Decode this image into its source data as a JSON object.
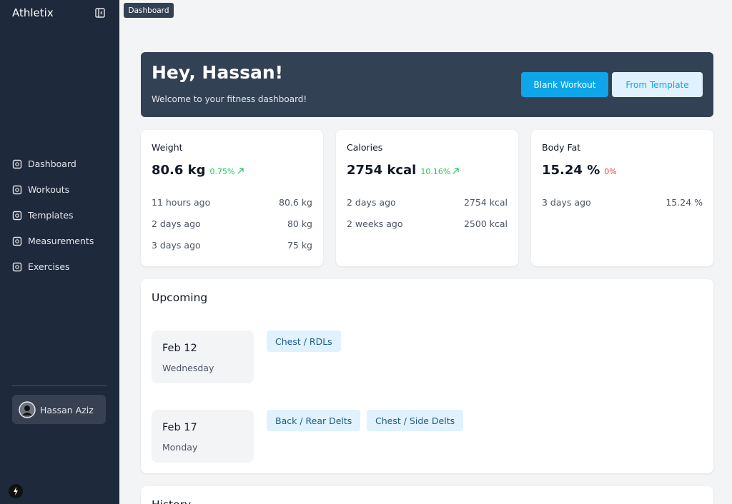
{
  "sidebar": {
    "brand": "Athletix",
    "nav": [
      "Dashboard",
      "Workouts",
      "Templates",
      "Measurements",
      "Exercises"
    ],
    "user": "Hassan Aziz"
  },
  "breadcrumb": "Dashboard",
  "hero": {
    "title": "Hey, Hassan!",
    "subtitle": "Welcome to your fitness dashboard!",
    "buttons": [
      "Blank Workout",
      "From Template"
    ]
  },
  "stats": [
    {
      "title": "Weight",
      "value": "80.6 kg",
      "change": "0.75%",
      "change_color": "#22c55e",
      "trend": "up",
      "history": [
        [
          "11 hours ago",
          "80.6 kg"
        ],
        [
          "2 days ago",
          "80 kg"
        ],
        [
          "3 days ago",
          "75 kg"
        ]
      ]
    },
    {
      "title": "Calories",
      "value": "2754 kcal",
      "change": "10.16%",
      "change_color": "#22c55e",
      "trend": "up",
      "history": [
        [
          "2 days ago",
          "2754 kcal"
        ],
        [
          "2 weeks ago",
          "2500 kcal"
        ]
      ]
    },
    {
      "title": "Body Fat",
      "value": "15.24 %",
      "change": "0%",
      "change_color": "#ef4444",
      "trend": "flat",
      "history": [
        [
          "3 days ago",
          "15.24 %"
        ]
      ]
    }
  ],
  "upcoming": {
    "title": "Upcoming",
    "items": [
      {
        "date": "Feb 12",
        "day": "Wednesday",
        "workouts": [
          "Chest / RDLs"
        ]
      },
      {
        "date": "Feb 17",
        "day": "Monday",
        "workouts": [
          "Back / Rear Delts",
          "Chest / Side Delts"
        ]
      }
    ]
  },
  "history": {
    "title": "History"
  }
}
